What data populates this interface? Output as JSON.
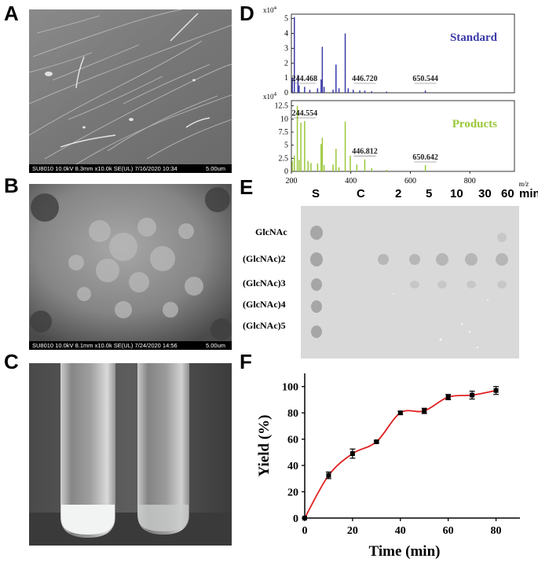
{
  "panels": {
    "A": {
      "letter": "A",
      "sem_meta": "SU8010 10.0kV 8.3mm x10.0k SE(UL) 7/16/2020 10:34",
      "sem_scale": "5.00um"
    },
    "B": {
      "letter": "B",
      "sem_meta": "SU8010 10.0kV 8.1mm x10.0k SE(UL) 7/24/2020 14:56",
      "sem_scale": "5.00um"
    },
    "C": {
      "letter": "C"
    },
    "D": {
      "letter": "D"
    },
    "E": {
      "letter": "E"
    },
    "F": {
      "letter": "F"
    }
  },
  "colors": {
    "standard": "#3a3aa8",
    "products": "#9ac83a",
    "curve": "#e02020",
    "points": "#000000"
  },
  "chart_data": [
    {
      "type": "bar",
      "panel": "D",
      "description_hint": "mass spectra",
      "xlabel": "m/z",
      "xlim": [
        200,
        950
      ],
      "xticks": [
        "200",
        "400",
        "600",
        "800"
      ],
      "series": [
        {
          "name": "Standard",
          "y_multiplier_label": "x10",
          "y_multiplier_exp": "4",
          "ylim": [
            0,
            5.3
          ],
          "yticks": [
            "0",
            "1",
            "2",
            "3",
            "4",
            "5"
          ],
          "peaks": [
            {
              "x": 203,
              "y": 1.0
            },
            {
              "x": 210,
              "y": 5.1
            },
            {
              "x": 222,
              "y": 1.2
            },
            {
              "x": 226,
              "y": 0.5
            },
            {
              "x": 244.468,
              "y": 0.4
            },
            {
              "x": 262,
              "y": 0.2
            },
            {
              "x": 288,
              "y": 0.3
            },
            {
              "x": 300,
              "y": 0.9
            },
            {
              "x": 304,
              "y": 3.1
            },
            {
              "x": 310,
              "y": 0.4
            },
            {
              "x": 340,
              "y": 0.2
            },
            {
              "x": 350,
              "y": 1.9
            },
            {
              "x": 360,
              "y": 0.3
            },
            {
              "x": 381,
              "y": 4.0
            },
            {
              "x": 391,
              "y": 0.3
            },
            {
              "x": 408,
              "y": 0.2
            },
            {
              "x": 430,
              "y": 0.15
            },
            {
              "x": 446.72,
              "y": 0.15
            },
            {
              "x": 470,
              "y": 0.1
            },
            {
              "x": 520,
              "y": 0.08
            },
            {
              "x": 650.544,
              "y": 0.15
            }
          ],
          "annotations": [
            "244.468",
            "446.720",
            "650.544"
          ]
        },
        {
          "name": "Products",
          "y_multiplier_label": "x10",
          "y_multiplier_exp": "4",
          "ylim": [
            0,
            13.5
          ],
          "yticks": [
            "0",
            "2.5",
            "5",
            "7.5",
            "10",
            "12.5"
          ],
          "peaks": [
            {
              "x": 203,
              "y": 2.0
            },
            {
              "x": 210,
              "y": 3.0
            },
            {
              "x": 220,
              "y": 12.5
            },
            {
              "x": 226,
              "y": 2.2
            },
            {
              "x": 232,
              "y": 9.3
            },
            {
              "x": 244.554,
              "y": 9.6
            },
            {
              "x": 256,
              "y": 2.0
            },
            {
              "x": 266,
              "y": 1.6
            },
            {
              "x": 288,
              "y": 1.5
            },
            {
              "x": 300,
              "y": 5.2
            },
            {
              "x": 304,
              "y": 6.4
            },
            {
              "x": 310,
              "y": 1.2
            },
            {
              "x": 340,
              "y": 1.3
            },
            {
              "x": 350,
              "y": 4.3
            },
            {
              "x": 360,
              "y": 0.8
            },
            {
              "x": 381,
              "y": 9.5
            },
            {
              "x": 398,
              "y": 3.0
            },
            {
              "x": 420,
              "y": 1.3
            },
            {
              "x": 446.812,
              "y": 2.3
            },
            {
              "x": 470,
              "y": 0.6
            },
            {
              "x": 520,
              "y": 0.3
            },
            {
              "x": 650.642,
              "y": 1.2
            }
          ],
          "annotations": [
            "244.554",
            "446.812",
            "650.642"
          ]
        }
      ]
    },
    {
      "type": "line",
      "panel": "F",
      "xlabel": "Time (min)",
      "ylabel": "Yield (%)",
      "xlim": [
        0,
        90
      ],
      "ylim": [
        0,
        110
      ],
      "xticks": [
        "0",
        "20",
        "40",
        "60",
        "80"
      ],
      "yticks": [
        "0",
        "20",
        "40",
        "60",
        "80",
        "100"
      ],
      "x": [
        0,
        10,
        20,
        30,
        40,
        50,
        60,
        70,
        80
      ],
      "y": [
        0,
        32.5,
        49,
        58,
        80,
        81.5,
        92,
        93.5,
        97
      ],
      "err": [
        0,
        2.5,
        3.5,
        0.8,
        1.2,
        2.0,
        2.0,
        3.0,
        3.0
      ]
    }
  ],
  "tlc": {
    "lanes": [
      "S",
      "C",
      "2",
      "5",
      "10",
      "30",
      "60"
    ],
    "unit": "min",
    "standards": [
      "GlcNAc",
      "(GlcNAc)2",
      "(GlcNAc)3",
      "(GlcNAc)4",
      "(GlcNAc)5"
    ]
  }
}
